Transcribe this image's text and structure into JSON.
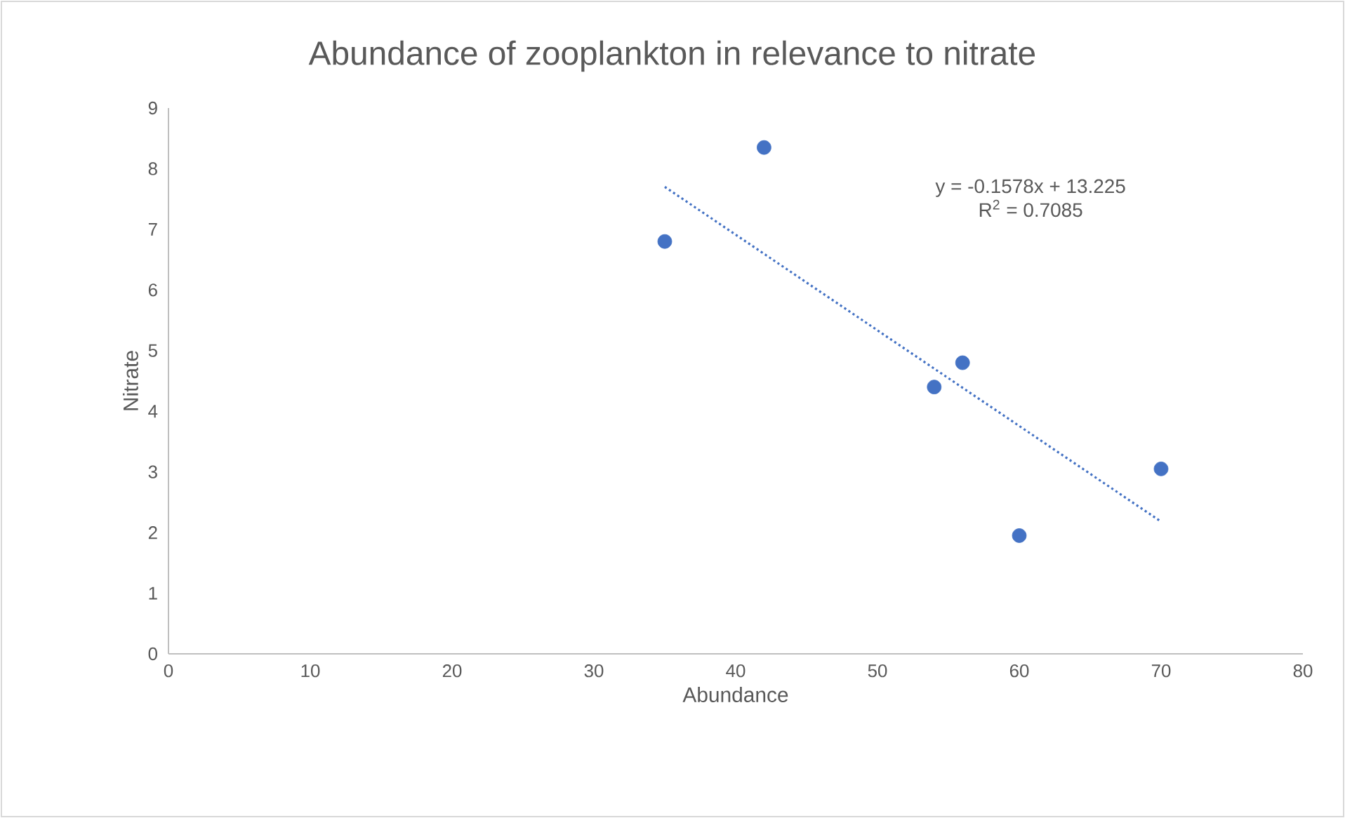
{
  "chart_data": {
    "type": "scatter",
    "title": "Abundance of zooplankton in relevance to nitrate",
    "xlabel": "Abundance",
    "ylabel": "Nitrate",
    "xlim": [
      0,
      80
    ],
    "ylim": [
      0,
      9
    ],
    "xticks": [
      0,
      10,
      20,
      30,
      40,
      50,
      60,
      70,
      80
    ],
    "yticks": [
      0,
      1,
      2,
      3,
      4,
      5,
      6,
      7,
      8,
      9
    ],
    "annotations": [
      "y = -0.1578x + 13.225",
      "R$^{2}$ = 0.7085"
    ],
    "series": [
      {
        "color": "#4472c4",
        "marker": "circle",
        "x": [
          35,
          42,
          54,
          56,
          60,
          70
        ],
        "values": [
          6.8,
          8.35,
          4.4,
          4.8,
          1.95,
          3.05
        ]
      },
      {
        "type": "line",
        "color": "#4472c4",
        "line_style": "dotted",
        "marker": "none",
        "x": [
          35,
          70
        ],
        "values": [
          7.7,
          2.18
        ]
      }
    ]
  }
}
